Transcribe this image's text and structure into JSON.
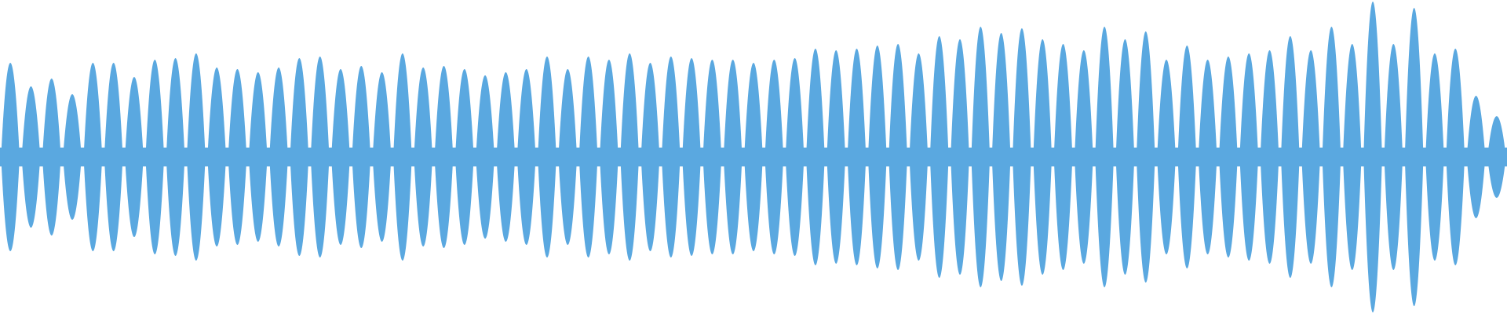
{
  "chart_data": {
    "type": "waveform",
    "color": "#5aa8e0",
    "ylim": [
      -1,
      1
    ],
    "values": [
      0.6,
      0.45,
      0.5,
      0.4,
      0.6,
      0.6,
      0.51,
      0.62,
      0.63,
      0.66,
      0.57,
      0.56,
      0.54,
      0.57,
      0.63,
      0.64,
      0.56,
      0.58,
      0.54,
      0.66,
      0.57,
      0.58,
      0.56,
      0.52,
      0.54,
      0.56,
      0.64,
      0.56,
      0.64,
      0.62,
      0.66,
      0.6,
      0.64,
      0.63,
      0.62,
      0.62,
      0.6,
      0.62,
      0.63,
      0.69,
      0.68,
      0.69,
      0.71,
      0.72,
      0.66,
      0.77,
      0.75,
      0.83,
      0.79,
      0.82,
      0.75,
      0.72,
      0.68,
      0.83,
      0.75,
      0.8,
      0.62,
      0.71,
      0.62,
      0.64,
      0.66,
      0.68,
      0.77,
      0.68,
      0.83,
      0.72,
      0.99,
      0.72,
      0.95,
      0.66,
      0.69,
      0.39,
      0.26
    ]
  }
}
